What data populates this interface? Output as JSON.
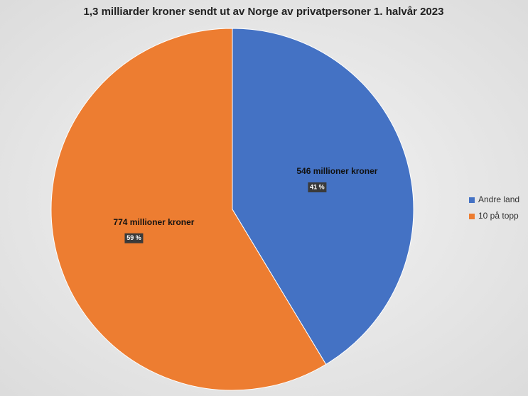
{
  "chart_data": {
    "type": "pie",
    "title": "1,3 milliarder kroner sendt ut av Norge av privatpersoner 1. halvår 2023",
    "categories": [
      "Andre land",
      "10 på topp"
    ],
    "values": [
      546,
      774
    ],
    "value_labels": [
      "546 millioner kroner",
      "774 millioner kroner"
    ],
    "percent_values": [
      41,
      59
    ],
    "percent_labels": [
      "41 %",
      "59 %"
    ],
    "colors": [
      "#4472c4",
      "#ed7d31"
    ],
    "legend": "right"
  }
}
